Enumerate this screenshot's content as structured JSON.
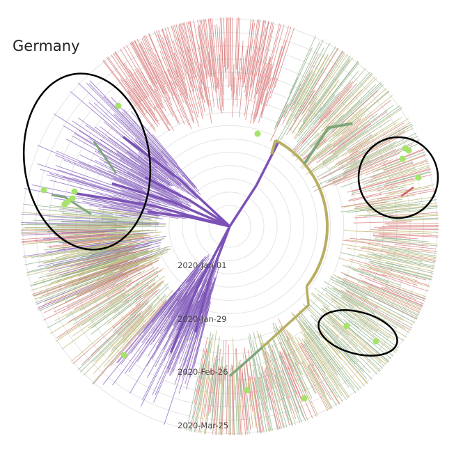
{
  "title": "Germany",
  "time_axis": [
    "2020-Jan-01",
    "2020-Jan-29",
    "2020-Feb-26",
    "2020-Mar-25"
  ],
  "clade_colors": {
    "purple": "#7b52b6",
    "olive": "#b8ae62",
    "green": "#7fa67a",
    "red": "#d46a6a",
    "highlight_tip": "#a6e36a",
    "ring": "#e4e4e4",
    "circle_annotation": "#000000"
  }
}
